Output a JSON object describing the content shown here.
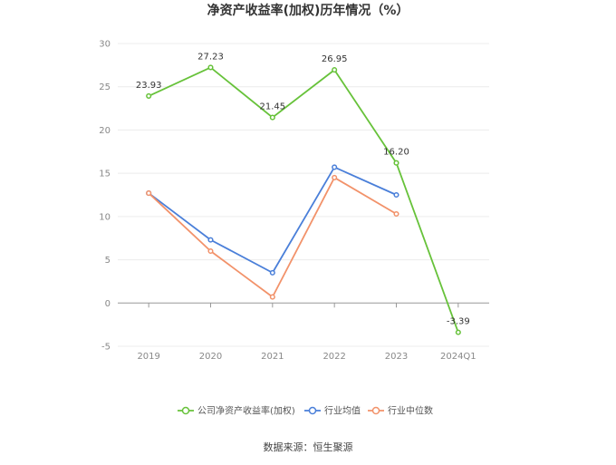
{
  "chart_data": {
    "type": "line",
    "title": "净资产收益率(加权)历年情况（%）",
    "categories": [
      "2019",
      "2020",
      "2021",
      "2022",
      "2023",
      "2024Q1"
    ],
    "ylim": [
      -5,
      30
    ],
    "yticks": [
      -5,
      0,
      5,
      10,
      15,
      20,
      25,
      30
    ],
    "grid": true,
    "legend_position": "bottom",
    "series": [
      {
        "name": "公司净资产收益率(加权)",
        "color": "#67c23a",
        "values": [
          23.93,
          27.23,
          21.45,
          26.95,
          16.2,
          -3.39
        ],
        "labels": [
          "23.93",
          "27.23",
          "21.45",
          "26.95",
          "16.20",
          "-3.39"
        ]
      },
      {
        "name": "行业均值",
        "color": "#4a7fd9",
        "values": [
          12.7,
          7.3,
          3.5,
          15.7,
          12.5,
          null
        ]
      },
      {
        "name": "行业中位数",
        "color": "#f2926a",
        "values": [
          12.7,
          6.0,
          0.7,
          14.5,
          10.3,
          null
        ]
      }
    ],
    "source": "数据来源：恒生聚源"
  }
}
